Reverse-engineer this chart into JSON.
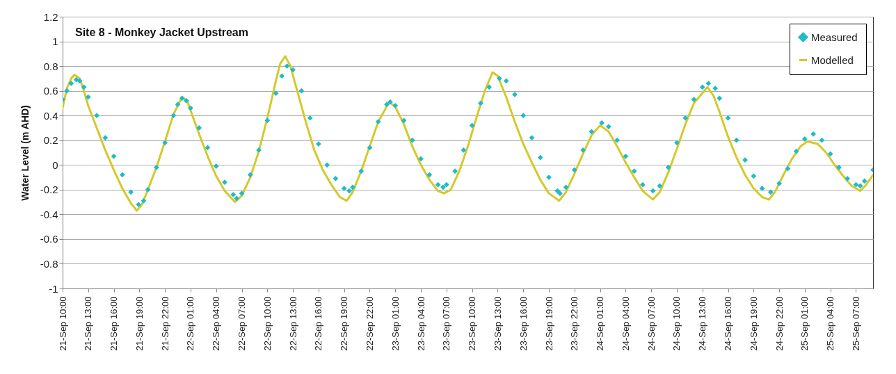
{
  "chart_data": {
    "type": "line",
    "title": "Site 8 - Monkey Jacket Upstream",
    "ylabel": "Water Level (m AHD)",
    "xlim": [
      "--09-21T10:00",
      "--09-25T09:00"
    ],
    "ylim": [
      -1,
      1.2
    ],
    "yticks": [
      -1,
      -0.8,
      -0.6,
      -0.4,
      -0.2,
      0,
      0.2,
      0.4,
      0.6,
      0.8,
      1,
      1.2
    ],
    "xticks": [
      {
        "value": "--09-21T10:00",
        "label": "21-Sep 10:00"
      },
      {
        "value": "--09-21T13:00",
        "label": "21-Sep 13:00"
      },
      {
        "value": "--09-21T16:00",
        "label": "21-Sep 16:00"
      },
      {
        "value": "--09-21T19:00",
        "label": "21-Sep 19:00"
      },
      {
        "value": "--09-21T22:00",
        "label": "21-Sep 22:00"
      },
      {
        "value": "--09-22T01:00",
        "label": "22-Sep 01:00"
      },
      {
        "value": "--09-22T04:00",
        "label": "22-Sep 04:00"
      },
      {
        "value": "--09-22T07:00",
        "label": "22-Sep 07:00"
      },
      {
        "value": "--09-22T10:00",
        "label": "22-Sep 10:00"
      },
      {
        "value": "--09-22T13:00",
        "label": "22-Sep 13:00"
      },
      {
        "value": "--09-22T16:00",
        "label": "22-Sep 16:00"
      },
      {
        "value": "--09-22T19:00",
        "label": "22-Sep 19:00"
      },
      {
        "value": "--09-22T22:00",
        "label": "22-Sep 22:00"
      },
      {
        "value": "--09-23T01:00",
        "label": "23-Sep 01:00"
      },
      {
        "value": "--09-23T04:00",
        "label": "23-Sep 04:00"
      },
      {
        "value": "--09-23T07:00",
        "label": "23-Sep 07:00"
      },
      {
        "value": "--09-23T10:00",
        "label": "23-Sep 10:00"
      },
      {
        "value": "--09-23T13:00",
        "label": "23-Sep 13:00"
      },
      {
        "value": "--09-23T16:00",
        "label": "23-Sep 16:00"
      },
      {
        "value": "--09-23T19:00",
        "label": "23-Sep 19:00"
      },
      {
        "value": "--09-23T22:00",
        "label": "23-Sep 22:00"
      },
      {
        "value": "--09-24T01:00",
        "label": "24-Sep 01:00"
      },
      {
        "value": "--09-24T04:00",
        "label": "24-Sep 04:00"
      },
      {
        "value": "--09-24T07:00",
        "label": "24-Sep 07:00"
      },
      {
        "value": "--09-24T10:00",
        "label": "24-Sep 10:00"
      },
      {
        "value": "--09-24T13:00",
        "label": "24-Sep 13:00"
      },
      {
        "value": "--09-24T16:00",
        "label": "24-Sep 16:00"
      },
      {
        "value": "--09-24T19:00",
        "label": "24-Sep 19:00"
      },
      {
        "value": "--09-24T22:00",
        "label": "24-Sep 22:00"
      },
      {
        "value": "--09-25T01:00",
        "label": "25-Sep 01:00"
      },
      {
        "value": "--09-25T04:00",
        "label": "25-Sep 04:00"
      },
      {
        "value": "--09-25T07:00",
        "label": "25-Sep 07:00"
      }
    ],
    "grid": "y",
    "legend": "top right",
    "series": [
      {
        "name": "Measured",
        "type": "scatter",
        "marker": "diamond",
        "color": "#1fbcc8",
        "x": [
          "--09-21T10:00",
          "--09-21T10:30",
          "--09-21T11:00",
          "--09-21T11:36",
          "--09-21T12:00",
          "--09-21T12:30",
          "--09-21T13:00",
          "--09-21T14:00",
          "--09-21T15:00",
          "--09-21T16:00",
          "--09-21T17:00",
          "--09-21T18:00",
          "--09-21T18:54",
          "--09-21T19:30",
          "--09-21T20:00",
          "--09-21T21:00",
          "--09-21T22:00",
          "--09-21T23:00",
          "--09-21T23:30",
          "--09-22T00:00",
          "--09-22T00:30",
          "--09-22T01:00",
          "--09-22T02:00",
          "--09-22T03:00",
          "--09-22T04:00",
          "--09-22T05:00",
          "--09-22T06:00",
          "--09-22T06:24",
          "--09-22T07:00",
          "--09-22T08:00",
          "--09-22T09:00",
          "--09-22T10:00",
          "--09-22T11:00",
          "--09-22T11:42",
          "--09-22T12:18",
          "--09-22T13:00",
          "--09-22T14:00",
          "--09-22T15:00",
          "--09-22T16:00",
          "--09-22T17:00",
          "--09-22T18:00",
          "--09-22T19:00",
          "--09-22T19:36",
          "--09-22T20:00",
          "--09-22T21:00",
          "--09-22T22:00",
          "--09-22T23:00",
          "--09-23T00:00",
          "--09-23T00:24",
          "--09-23T01:00",
          "--09-23T02:00",
          "--09-23T03:00",
          "--09-23T04:00",
          "--09-23T05:00",
          "--09-23T06:00",
          "--09-23T06:36",
          "--09-23T07:00",
          "--09-23T08:00",
          "--09-23T09:00",
          "--09-23T10:00",
          "--09-23T11:00",
          "--09-23T12:00",
          "--09-23T13:12",
          "--09-23T14:00",
          "--09-23T15:00",
          "--09-23T16:00",
          "--09-23T17:00",
          "--09-23T18:00",
          "--09-23T19:00",
          "--09-23T20:00",
          "--09-23T20:18",
          "--09-23T21:00",
          "--09-23T22:00",
          "--09-23T23:00",
          "--09-24T00:00",
          "--09-24T01:12",
          "--09-24T02:00",
          "--09-24T03:00",
          "--09-24T04:00",
          "--09-24T05:00",
          "--09-24T06:00",
          "--09-24T07:12",
          "--09-24T08:00",
          "--09-24T09:00",
          "--09-24T10:00",
          "--09-24T11:00",
          "--09-24T12:00",
          "--09-24T13:00",
          "--09-24T13:42",
          "--09-24T14:30",
          "--09-24T15:00",
          "--09-24T16:00",
          "--09-24T17:00",
          "--09-24T18:00",
          "--09-24T19:00",
          "--09-24T20:00",
          "--09-24T21:00",
          "--09-24T22:00",
          "--09-24T23:00",
          "--09-25T00:00",
          "--09-25T01:00",
          "--09-25T02:00",
          "--09-25T03:00",
          "--09-25T04:00",
          "--09-25T05:00",
          "--09-25T06:00",
          "--09-25T07:00",
          "--09-25T07:30",
          "--09-25T08:00",
          "--09-25T09:00"
        ],
        "values": [
          0.53,
          0.6,
          0.66,
          0.69,
          0.68,
          0.63,
          0.55,
          0.4,
          0.22,
          0.07,
          -0.08,
          -0.22,
          -0.32,
          -0.29,
          -0.2,
          -0.02,
          0.18,
          0.4,
          0.49,
          0.54,
          0.52,
          0.46,
          0.3,
          0.14,
          -0.01,
          -0.14,
          -0.24,
          -0.27,
          -0.23,
          -0.08,
          0.12,
          0.36,
          0.58,
          0.72,
          0.8,
          0.77,
          0.6,
          0.38,
          0.17,
          0,
          -0.11,
          -0.19,
          -0.21,
          -0.18,
          -0.05,
          0.14,
          0.35,
          0.49,
          0.51,
          0.48,
          0.36,
          0.2,
          0.05,
          -0.08,
          -0.16,
          -0.18,
          -0.16,
          -0.05,
          0.12,
          0.32,
          0.5,
          0.63,
          0.7,
          0.68,
          0.57,
          0.4,
          0.22,
          0.06,
          -0.1,
          -0.21,
          -0.23,
          -0.18,
          -0.04,
          0.12,
          0.27,
          0.34,
          0.31,
          0.2,
          0.07,
          -0.05,
          -0.16,
          -0.21,
          -0.17,
          -0.02,
          0.18,
          0.38,
          0.53,
          0.63,
          0.66,
          0.62,
          0.54,
          0.38,
          0.2,
          0.04,
          -0.09,
          -0.19,
          -0.22,
          -0.15,
          -0.03,
          0.11,
          0.21,
          0.25,
          0.2,
          0.09,
          -0.02,
          -0.11,
          -0.16,
          -0.17,
          -0.13,
          -0.04
        ]
      },
      {
        "name": "Modelled",
        "type": "line",
        "marker": "none",
        "line_style": "solid",
        "color": "#d4c92a",
        "x": [
          "--09-21T10:00",
          "--09-21T10:30",
          "--09-21T11:00",
          "--09-21T11:24",
          "--09-21T12:00",
          "--09-21T12:30",
          "--09-21T13:00",
          "--09-21T14:00",
          "--09-21T15:00",
          "--09-21T16:00",
          "--09-21T17:00",
          "--09-21T18:00",
          "--09-21T18:42",
          "--09-21T19:18",
          "--09-21T20:00",
          "--09-21T21:00",
          "--09-21T22:00",
          "--09-21T23:00",
          "--09-22T00:00",
          "--09-22T00:36",
          "--09-22T01:00",
          "--09-22T02:00",
          "--09-22T03:00",
          "--09-22T04:00",
          "--09-22T05:00",
          "--09-22T06:12",
          "--09-22T07:00",
          "--09-22T08:00",
          "--09-22T09:00",
          "--09-22T10:00",
          "--09-22T11:00",
          "--09-22T11:30",
          "--09-22T12:06",
          "--09-22T12:42",
          "--09-22T13:30",
          "--09-22T14:30",
          "--09-22T15:30",
          "--09-22T16:30",
          "--09-22T17:30",
          "--09-22T18:30",
          "--09-22T19:18",
          "--09-22T20:00",
          "--09-22T21:00",
          "--09-22T22:00",
          "--09-22T23:00",
          "--09-23T00:18",
          "--09-23T01:00",
          "--09-23T02:00",
          "--09-23T03:00",
          "--09-23T04:00",
          "--09-23T05:00",
          "--09-23T06:00",
          "--09-23T06:42",
          "--09-23T07:30",
          "--09-23T08:30",
          "--09-23T09:30",
          "--09-23T10:30",
          "--09-23T11:30",
          "--09-23T12:24",
          "--09-23T13:00",
          "--09-23T14:00",
          "--09-23T15:00",
          "--09-23T16:00",
          "--09-23T17:00",
          "--09-23T18:00",
          "--09-23T19:00",
          "--09-23T20:12",
          "--09-23T21:00",
          "--09-23T22:00",
          "--09-23T23:00",
          "--09-24T00:00",
          "--09-24T01:00",
          "--09-24T02:00",
          "--09-24T03:00",
          "--09-24T04:00",
          "--09-24T05:00",
          "--09-24T06:00",
          "--09-24T07:12",
          "--09-24T08:00",
          "--09-24T09:00",
          "--09-24T10:00",
          "--09-24T11:00",
          "--09-24T12:00",
          "--09-24T13:36",
          "--09-24T14:18",
          "--09-24T15:00",
          "--09-24T16:00",
          "--09-24T17:00",
          "--09-24T18:00",
          "--09-24T19:00",
          "--09-24T20:00",
          "--09-24T20:48",
          "--09-24T21:30",
          "--09-24T22:30",
          "--09-24T23:30",
          "--09-25T00:30",
          "--09-25T01:18",
          "--09-25T02:30",
          "--09-25T03:30",
          "--09-25T04:30",
          "--09-25T05:30",
          "--09-25T06:30",
          "--09-25T07:30",
          "--09-25T08:12",
          "--09-25T09:00"
        ],
        "values": [
          0.46,
          0.62,
          0.7,
          0.73,
          0.7,
          0.6,
          0.48,
          0.3,
          0.12,
          -0.04,
          -0.19,
          -0.31,
          -0.37,
          -0.32,
          -0.2,
          -0.02,
          0.19,
          0.41,
          0.55,
          0.52,
          0.44,
          0.25,
          0.07,
          -0.09,
          -0.21,
          -0.3,
          -0.25,
          -0.1,
          0.11,
          0.38,
          0.68,
          0.82,
          0.88,
          0.8,
          0.6,
          0.35,
          0.12,
          -0.04,
          -0.16,
          -0.26,
          -0.29,
          -0.22,
          -0.05,
          0.15,
          0.35,
          0.51,
          0.47,
          0.33,
          0.15,
          0,
          -0.12,
          -0.21,
          -0.23,
          -0.2,
          -0.05,
          0.15,
          0.38,
          0.6,
          0.75,
          0.72,
          0.55,
          0.35,
          0.17,
          0.02,
          -0.12,
          -0.23,
          -0.29,
          -0.22,
          -0.07,
          0.09,
          0.24,
          0.32,
          0.27,
          0.15,
          0.02,
          -0.1,
          -0.21,
          -0.28,
          -0.22,
          -0.06,
          0.13,
          0.33,
          0.5,
          0.63,
          0.56,
          0.43,
          0.23,
          0.06,
          -0.08,
          -0.19,
          -0.26,
          -0.28,
          -0.22,
          -0.08,
          0.05,
          0.15,
          0.19,
          0.17,
          0.1,
          0,
          -0.09,
          -0.17,
          -0.21,
          -0.16,
          -0.08
        ]
      }
    ]
  }
}
